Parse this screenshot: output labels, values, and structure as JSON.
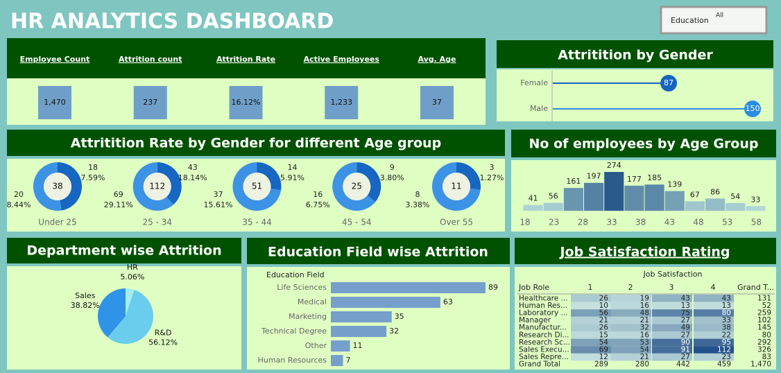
{
  "header": {
    "title": "HR ANALYTICS DASHBOARD"
  },
  "filter": {
    "label": "Education",
    "value": "All"
  },
  "kpis": [
    {
      "label": "Employee Count",
      "value": "1,470"
    },
    {
      "label": "Attrition count",
      "value": "237"
    },
    {
      "label": "Attrition Rate",
      "value": "16.12%"
    },
    {
      "label": "Active Employees",
      "value": "1,233"
    },
    {
      "label": "Avg. Age",
      "value": "37"
    }
  ],
  "chart_data": [
    {
      "type": "lollipop",
      "title": "Attritition by Gender",
      "categories": [
        "Female",
        "Male"
      ],
      "values": [
        87,
        150
      ],
      "colors": [
        "#1565c0",
        "#2b8de0"
      ]
    },
    {
      "type": "donut",
      "title": "Attritition Rate by Gender for different Age group",
      "categories": [
        "Under 25",
        "25 - 34",
        "35 - 44",
        "45 - 54",
        "Over 55"
      ],
      "totals": [
        38,
        112,
        51,
        25,
        11
      ],
      "series": [
        {
          "color": "#1666c2",
          "values": [
            18,
            43,
            14,
            9,
            3
          ],
          "shares": [
            7.59,
            18.14,
            5.91,
            3.8,
            1.27
          ],
          "share_labels": [
            "7.59%",
            "18.14%",
            "5.91%",
            "3.80%",
            "1.27%"
          ]
        },
        {
          "color": "#3c93e6",
          "values": [
            20,
            69,
            37,
            16,
            8
          ],
          "shares": [
            8.44,
            29.11,
            15.61,
            6.75,
            3.38
          ],
          "share_labels": [
            "8.44%",
            "29.11%",
            "15.61%",
            "6.75%",
            "3.38%"
          ]
        }
      ]
    },
    {
      "type": "histogram",
      "title": "No of employees by Age Group",
      "bins": [
        18,
        21.5,
        25,
        28.5,
        32,
        35.5,
        39,
        42.5,
        46,
        49.5,
        53,
        56.5,
        60
      ],
      "values": [
        41,
        56,
        161,
        197,
        274,
        177,
        185,
        139,
        67,
        86,
        54,
        33
      ],
      "xlim": [
        18,
        60
      ],
      "xticks": [
        18,
        23,
        28,
        33,
        38,
        43,
        48,
        53,
        58
      ],
      "colors": [
        "#c4e9e1",
        "#2a5a8c"
      ]
    },
    {
      "type": "pie",
      "title": "Department wise Attrition",
      "categories": [
        "HR",
        "R&D",
        "Sales"
      ],
      "values": [
        5.06,
        56.12,
        38.82
      ],
      "value_labels": [
        "5.06%",
        "56.12%",
        "38.82%"
      ],
      "colors": [
        "#a6ecf2",
        "#6acdee",
        "#2f93e8"
      ]
    },
    {
      "type": "bar",
      "orientation": "horizontal",
      "title": "Education Field wise Attrition",
      "y_label": "Education Field",
      "categories": [
        "Life Sciences",
        "Medical",
        "Marketing",
        "Technical Degree",
        "Other",
        "Human Resources"
      ],
      "values": [
        89,
        63,
        35,
        32,
        11,
        7
      ],
      "color": "#769fcc"
    }
  ],
  "table": {
    "title": "Job Satisfaction Rating",
    "column_group": "Job Satisfaction",
    "row_header": "Job Role",
    "columns": [
      "1",
      "2",
      "3",
      "4",
      "Grand T..."
    ],
    "colors": [
      "#d4efe7",
      "#24508a"
    ],
    "rows": [
      {
        "label": "Healthcare ...",
        "cells": [
          26,
          19,
          43,
          43,
          131
        ]
      },
      {
        "label": "Human Res...",
        "cells": [
          10,
          16,
          13,
          13,
          52
        ]
      },
      {
        "label": "Laboratory ...",
        "cells": [
          56,
          48,
          75,
          80,
          259
        ]
      },
      {
        "label": "Manager",
        "cells": [
          21,
          21,
          27,
          33,
          102
        ]
      },
      {
        "label": "Manufactur...",
        "cells": [
          26,
          32,
          49,
          38,
          145
        ]
      },
      {
        "label": "Research Di...",
        "cells": [
          15,
          16,
          27,
          22,
          80
        ]
      },
      {
        "label": "Research Sc...",
        "cells": [
          54,
          53,
          90,
          95,
          292
        ]
      },
      {
        "label": "Sales Execu...",
        "cells": [
          69,
          54,
          91,
          112,
          326
        ]
      },
      {
        "label": "Sales Repre...",
        "cells": [
          12,
          21,
          27,
          23,
          83
        ]
      },
      {
        "label": "Grand Total",
        "cells": [
          289,
          280,
          442,
          459,
          {
            "value": 1470,
            "label": "1,470"
          }
        ]
      }
    ]
  }
}
